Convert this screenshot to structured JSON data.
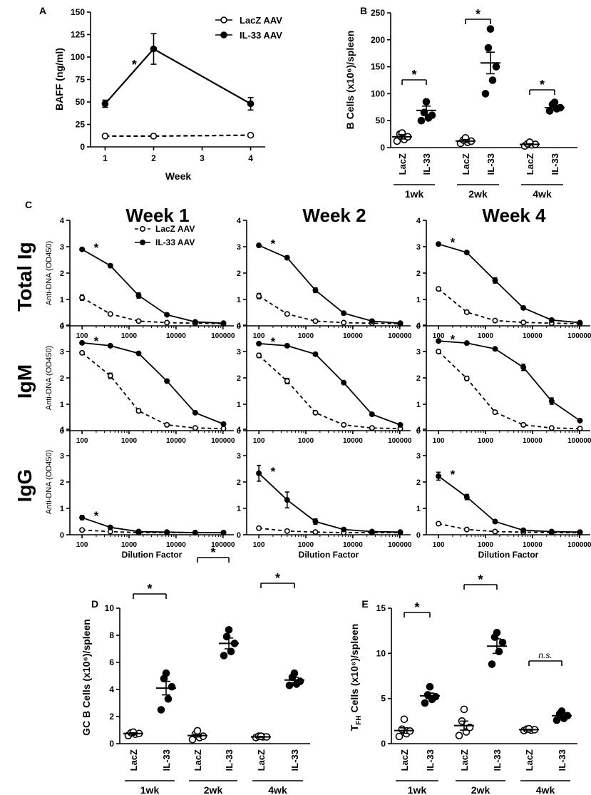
{
  "chart_data": [
    {
      "id": "A",
      "panel_label": "A",
      "type": "line",
      "xlabel": "Week",
      "ylabel": "BAFF (ng/ml)",
      "xticks": [
        "1",
        "2",
        "3",
        "4"
      ],
      "yticks": [
        "0",
        "25",
        "50",
        "75",
        "100",
        "125",
        "150"
      ],
      "xlim": [
        0.7,
        4.3
      ],
      "ylim": [
        0,
        150
      ],
      "legend": [
        "LacZ AAV",
        "IL-33 AAV"
      ],
      "annotations": [
        {
          "text": "*",
          "x": 1.5,
          "y": 93
        }
      ],
      "series": [
        {
          "name": "LacZ AAV",
          "x": [
            1,
            2,
            4
          ],
          "values": [
            12,
            12,
            13
          ],
          "err": [
            0,
            0,
            0
          ],
          "style": "open-dashed"
        },
        {
          "name": "IL-33 AAV",
          "x": [
            1,
            2,
            4
          ],
          "values": [
            48,
            109,
            48
          ],
          "err": [
            4,
            17,
            7
          ],
          "style": "filled-solid"
        }
      ]
    },
    {
      "id": "B",
      "panel_label": "B",
      "type": "scatter",
      "ylabel": "B Cells (x10⁶)/spleen",
      "yticks": [
        "0",
        "50",
        "100",
        "150",
        "200",
        "250"
      ],
      "ylim": [
        0,
        250
      ],
      "categories": [
        "LacZ",
        "IL-33",
        "LacZ",
        "IL-33",
        "LacZ",
        "IL-33"
      ],
      "groups": [
        "1wk",
        "2wk",
        "4wk"
      ],
      "sig": [
        "*",
        "*",
        "*"
      ],
      "points": [
        [
          12,
          15,
          20,
          25,
          27
        ],
        [
          50,
          55,
          60,
          65,
          85
        ],
        [
          8,
          10,
          12,
          14,
          18
        ],
        [
          100,
          125,
          150,
          185,
          220
        ],
        [
          3,
          5,
          6,
          7,
          10
        ],
        [
          68,
          72,
          74,
          80,
          84
        ]
      ],
      "means": [
        20,
        69,
        12,
        157,
        6,
        74
      ],
      "sems": [
        4,
        8,
        3,
        20,
        1,
        4
      ]
    },
    {
      "id": "C",
      "panel_label": "C",
      "type": "line",
      "col_titles": [
        "Week 1",
        "Week 2",
        "Week 4"
      ],
      "row_titles": [
        "Total Ig",
        "IgM",
        "IgG"
      ],
      "ylabel": "Anti-DNA (OD450)",
      "xlabel": "Dilution Factor",
      "xticks": [
        "100",
        "1000",
        "10000",
        "100000"
      ],
      "yticks": [
        "0",
        "1",
        "2",
        "3",
        "4"
      ],
      "x": [
        100,
        400,
        1600,
        6400,
        25600,
        102400
      ],
      "legend": [
        "LacZ AAV",
        "IL-33 AAV"
      ],
      "sig": "*",
      "panels": [
        {
          "row": "Total Ig",
          "col": "Week 1",
          "IL33": [
            2.9,
            2.28,
            1.15,
            0.42,
            0.15,
            0.1
          ],
          "IL33_err": [
            0.02,
            0.06,
            0.1,
            0.02,
            0.01,
            0.01
          ],
          "LacZ": [
            1.07,
            0.45,
            0.18,
            0.12,
            0.1,
            0.08
          ],
          "LacZ_err": [
            0.1,
            0.02,
            0.01,
            0.01,
            0.01,
            0.01
          ]
        },
        {
          "row": "Total Ig",
          "col": "Week 2",
          "IL33": [
            3.05,
            2.58,
            1.35,
            0.48,
            0.18,
            0.1
          ],
          "IL33_err": [
            0.02,
            0.07,
            0.09,
            0.02,
            0.01,
            0.01
          ],
          "LacZ": [
            1.13,
            0.45,
            0.18,
            0.12,
            0.1,
            0.08
          ],
          "LacZ_err": [
            0.1,
            0.02,
            0.01,
            0.01,
            0.01,
            0.01
          ]
        },
        {
          "row": "Total Ig",
          "col": "Week 4",
          "IL33": [
            3.1,
            2.78,
            1.72,
            0.68,
            0.22,
            0.12
          ],
          "IL33_err": [
            0.02,
            0.03,
            0.1,
            0.06,
            0.01,
            0.01
          ],
          "LacZ": [
            1.4,
            0.52,
            0.2,
            0.13,
            0.1,
            0.08
          ],
          "LacZ_err": [
            0.05,
            0.02,
            0.01,
            0.01,
            0.01,
            0.01
          ]
        },
        {
          "row": "IgM",
          "col": "Week 1",
          "IL33": [
            3.33,
            3.22,
            2.93,
            1.88,
            0.68,
            0.25
          ],
          "IL33_err": [
            0.02,
            0.02,
            0.02,
            0.07,
            0.02,
            0.01
          ],
          "LacZ": [
            2.95,
            2.08,
            0.75,
            0.22,
            0.1,
            0.08
          ],
          "LacZ_err": [
            0.03,
            0.1,
            0.07,
            0.01,
            0.01,
            0.01
          ]
        },
        {
          "row": "IgM",
          "col": "Week 2",
          "IL33": [
            3.3,
            3.22,
            2.9,
            1.82,
            0.62,
            0.22
          ],
          "IL33_err": [
            0.02,
            0.02,
            0.02,
            0.03,
            0.02,
            0.01
          ],
          "LacZ": [
            2.85,
            1.88,
            0.68,
            0.22,
            0.1,
            0.08
          ],
          "LacZ_err": [
            0.08,
            0.1,
            0.03,
            0.01,
            0.01,
            0.01
          ]
        },
        {
          "row": "IgM",
          "col": "Week 4",
          "IL33": [
            3.4,
            3.32,
            3.1,
            2.4,
            1.12,
            0.38
          ],
          "IL33_err": [
            0.02,
            0.02,
            0.02,
            0.12,
            0.12,
            0.01
          ],
          "LacZ": [
            3.0,
            1.98,
            0.7,
            0.22,
            0.1,
            0.08
          ],
          "LacZ_err": [
            0.03,
            0.08,
            0.03,
            0.01,
            0.01,
            0.01
          ]
        },
        {
          "row": "IgG",
          "col": "Week 1",
          "IL33": [
            0.65,
            0.28,
            0.12,
            0.1,
            0.08,
            0.08
          ],
          "IL33_err": [
            0.08,
            0.02,
            0.01,
            0.01,
            0.01,
            0.01
          ],
          "LacZ": [
            0.18,
            0.12,
            0.08,
            0.08,
            0.08,
            0.08
          ],
          "LacZ_err": [
            0.02,
            0.01,
            0.01,
            0.01,
            0.01,
            0.01
          ]
        },
        {
          "row": "IgG",
          "col": "Week 2",
          "IL33": [
            2.33,
            1.32,
            0.5,
            0.2,
            0.12,
            0.1
          ],
          "IL33_err": [
            0.3,
            0.3,
            0.1,
            0.02,
            0.01,
            0.01
          ],
          "LacZ": [
            0.25,
            0.14,
            0.1,
            0.08,
            0.08,
            0.08
          ],
          "LacZ_err": [
            0.02,
            0.01,
            0.01,
            0.01,
            0.01,
            0.01
          ]
        },
        {
          "row": "IgG",
          "col": "Week 4",
          "IL33": [
            2.22,
            1.43,
            0.5,
            0.17,
            0.12,
            0.1
          ],
          "IL33_err": [
            0.15,
            0.1,
            0.02,
            0.01,
            0.01,
            0.01
          ],
          "LacZ": [
            0.42,
            0.2,
            0.12,
            0.1,
            0.08,
            0.08
          ],
          "LacZ_err": [
            0.02,
            0.01,
            0.01,
            0.01,
            0.01,
            0.01
          ]
        }
      ]
    },
    {
      "id": "D",
      "panel_label": "D",
      "type": "scatter",
      "ylabel": "GC B Cells (x10⁶)/spleen",
      "yticks": [
        "0",
        "2",
        "4",
        "6",
        "8",
        "10"
      ],
      "ylim": [
        0,
        10
      ],
      "categories": [
        "LacZ",
        "IL-33",
        "LacZ",
        "IL-33",
        "LacZ",
        "IL-33"
      ],
      "groups": [
        "1wk",
        "2wk",
        "4wk"
      ],
      "sig": [
        "*",
        "*",
        "*"
      ],
      "points": [
        [
          0.6,
          0.7,
          0.75,
          0.8,
          0.85
        ],
        [
          2.5,
          3.3,
          4.2,
          4.8,
          5.2
        ],
        [
          0.3,
          0.45,
          0.55,
          0.7,
          0.95
        ],
        [
          6.5,
          6.8,
          7.4,
          7.9,
          8.4
        ],
        [
          0.45,
          0.5,
          0.5,
          0.55,
          0.55
        ],
        [
          4.3,
          4.4,
          4.6,
          4.9,
          5.2
        ]
      ],
      "means": [
        0.75,
        4.1,
        0.6,
        7.4,
        0.5,
        4.7
      ],
      "sems": [
        0.05,
        0.5,
        0.1,
        0.4,
        0.03,
        0.2
      ]
    },
    {
      "id": "E",
      "panel_label": "E",
      "type": "scatter",
      "ylabel": "T",
      "ylabel_sub": "FH",
      "ylabel_rest": " Cells (x10⁶)/spleen",
      "yticks": [
        "0",
        "5",
        "10",
        "15"
      ],
      "ylim": [
        0,
        15
      ],
      "categories": [
        "LacZ",
        "IL-33",
        "LacZ",
        "IL-33",
        "LacZ",
        "IL-33"
      ],
      "groups": [
        "1wk",
        "2wk",
        "4wk"
      ],
      "sig": [
        "*",
        "*",
        "n.s."
      ],
      "points": [
        [
          0.8,
          1.1,
          1.4,
          1.6,
          2.7
        ],
        [
          4.5,
          4.9,
          5.2,
          5.4,
          6.3
        ],
        [
          0.9,
          1.3,
          1.8,
          2.5,
          3.8
        ],
        [
          8.8,
          10.2,
          11.2,
          11.8,
          12.3
        ],
        [
          1.45,
          1.5,
          1.55,
          1.6,
          1.65
        ],
        [
          2.6,
          2.8,
          3.1,
          3.3,
          3.6
        ]
      ],
      "means": [
        1.45,
        5.3,
        2.0,
        10.8,
        1.55,
        3.1
      ],
      "sems": [
        0.3,
        0.3,
        0.5,
        0.8,
        0.05,
        0.2
      ]
    }
  ]
}
